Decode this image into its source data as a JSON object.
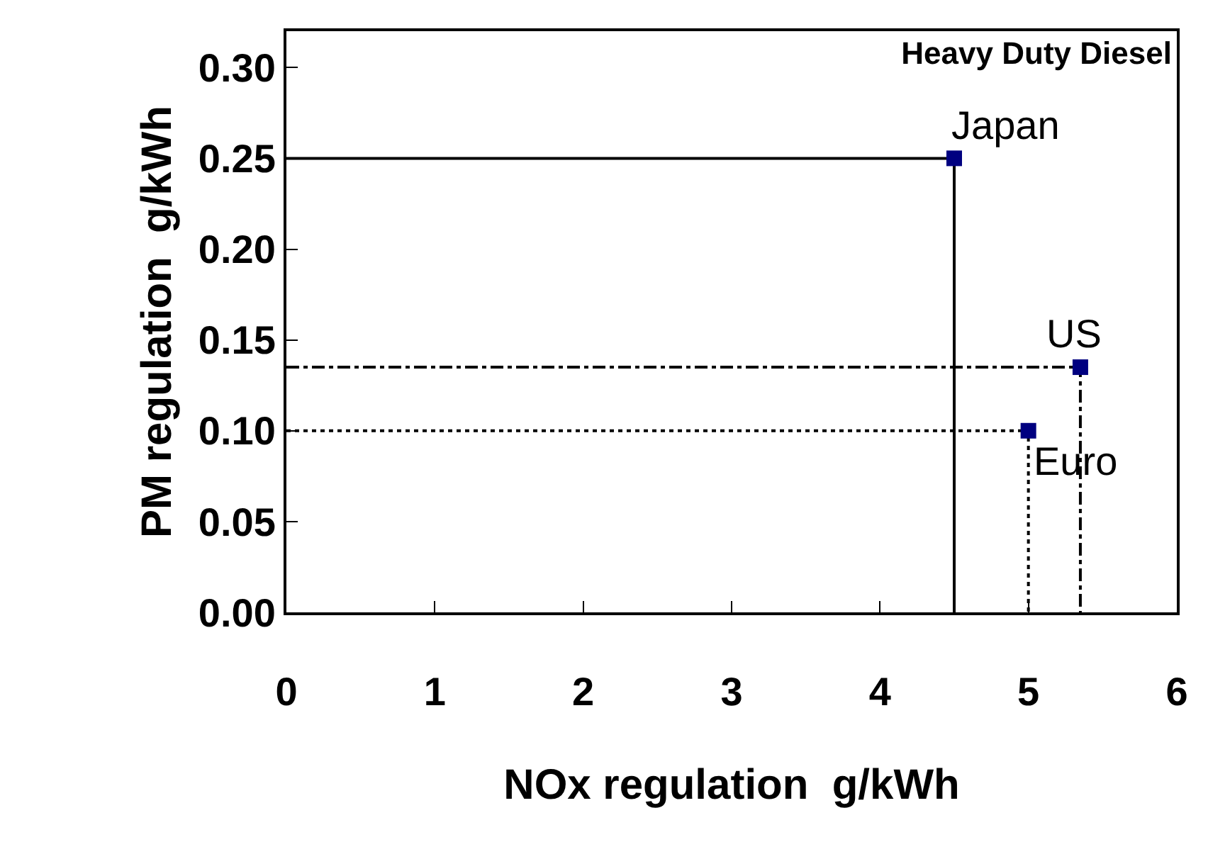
{
  "chart_data": {
    "type": "line",
    "title": "Heavy Duty Diesel",
    "xlabel": "NOx regulation  g/kWh",
    "ylabel": "PM regulation  g/kWh",
    "xlim": [
      0,
      6
    ],
    "xticks": [
      0,
      1,
      2,
      3,
      4,
      5,
      6
    ],
    "ylim": [
      0,
      0.32
    ],
    "yticks": [
      {
        "value": 0,
        "label": "0.00"
      },
      {
        "value": 0.05,
        "label": "0.05"
      },
      {
        "value": 0.1,
        "label": "0.10"
      },
      {
        "value": 0.15,
        "label": "0.15"
      },
      {
        "value": 0.2,
        "label": "0.20"
      },
      {
        "value": 0.25,
        "label": "0.25"
      },
      {
        "value": 0.3,
        "label": "0.30"
      }
    ],
    "series": [
      {
        "line_style": "solid",
        "marker": "none",
        "color": "#000000",
        "x": [
          0,
          4.5,
          4.5
        ],
        "values": [
          0.25,
          0.25,
          0
        ]
      },
      {
        "line_style": "dashdot",
        "marker": "none",
        "color": "#000000",
        "x": [
          0,
          5.35,
          5.35
        ],
        "values": [
          0.135,
          0.135,
          0
        ]
      },
      {
        "line_style": "dotted",
        "marker": "none",
        "color": "#000000",
        "x": [
          0,
          5.0,
          5.0
        ],
        "values": [
          0.1,
          0.1,
          0
        ]
      },
      {
        "type": "scatter",
        "marker": "square",
        "color": "#000080",
        "x": [
          4.5,
          5.35,
          5.0
        ],
        "values": [
          0.25,
          0.135,
          0.1
        ]
      }
    ],
    "annotations": [
      {
        "text": "Japan",
        "x": 4.5,
        "y": 0.25
      },
      {
        "text": "US",
        "x": 5.35,
        "y": 0.135
      },
      {
        "text": "Euro",
        "x": 5.0,
        "y": 0.1
      }
    ]
  }
}
